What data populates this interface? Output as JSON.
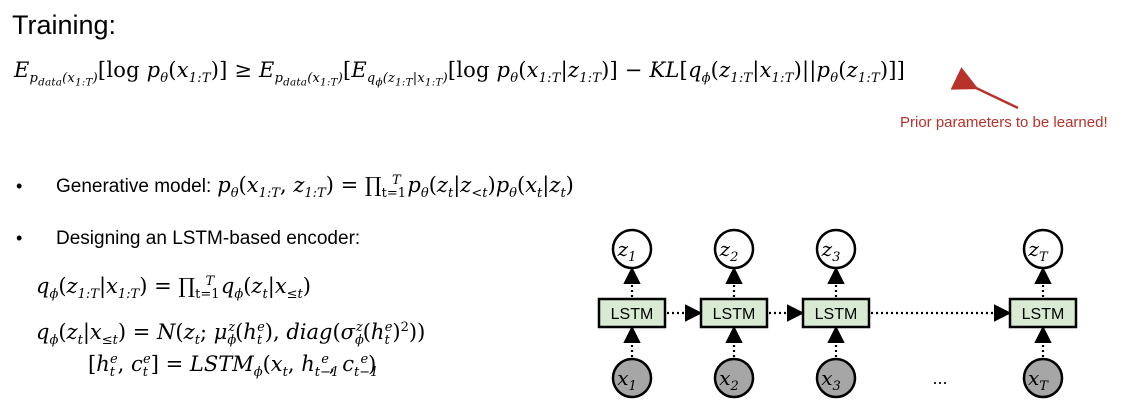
{
  "title": "Training:",
  "annotation": {
    "text": "Prior parameters to be learned!",
    "color": "#b8322c"
  },
  "bullets": {
    "generative_label": "Generative model:",
    "encoder_label": "Designing an LSTM-based encoder:"
  },
  "diagram": {
    "lstm_label": "LSTM",
    "latent_nodes": [
      "z",
      "z",
      "z",
      "z"
    ],
    "latent_subscripts": [
      "1",
      "2",
      "3",
      "T"
    ],
    "input_nodes": [
      "x",
      "x",
      "x",
      "x"
    ],
    "input_subscripts": [
      "1",
      "2",
      "3",
      "T"
    ],
    "ellipsis": "...",
    "colors": {
      "lstm_fill": "#d9ead3",
      "input_fill": "#a6a6a6",
      "stroke": "#000000"
    }
  }
}
